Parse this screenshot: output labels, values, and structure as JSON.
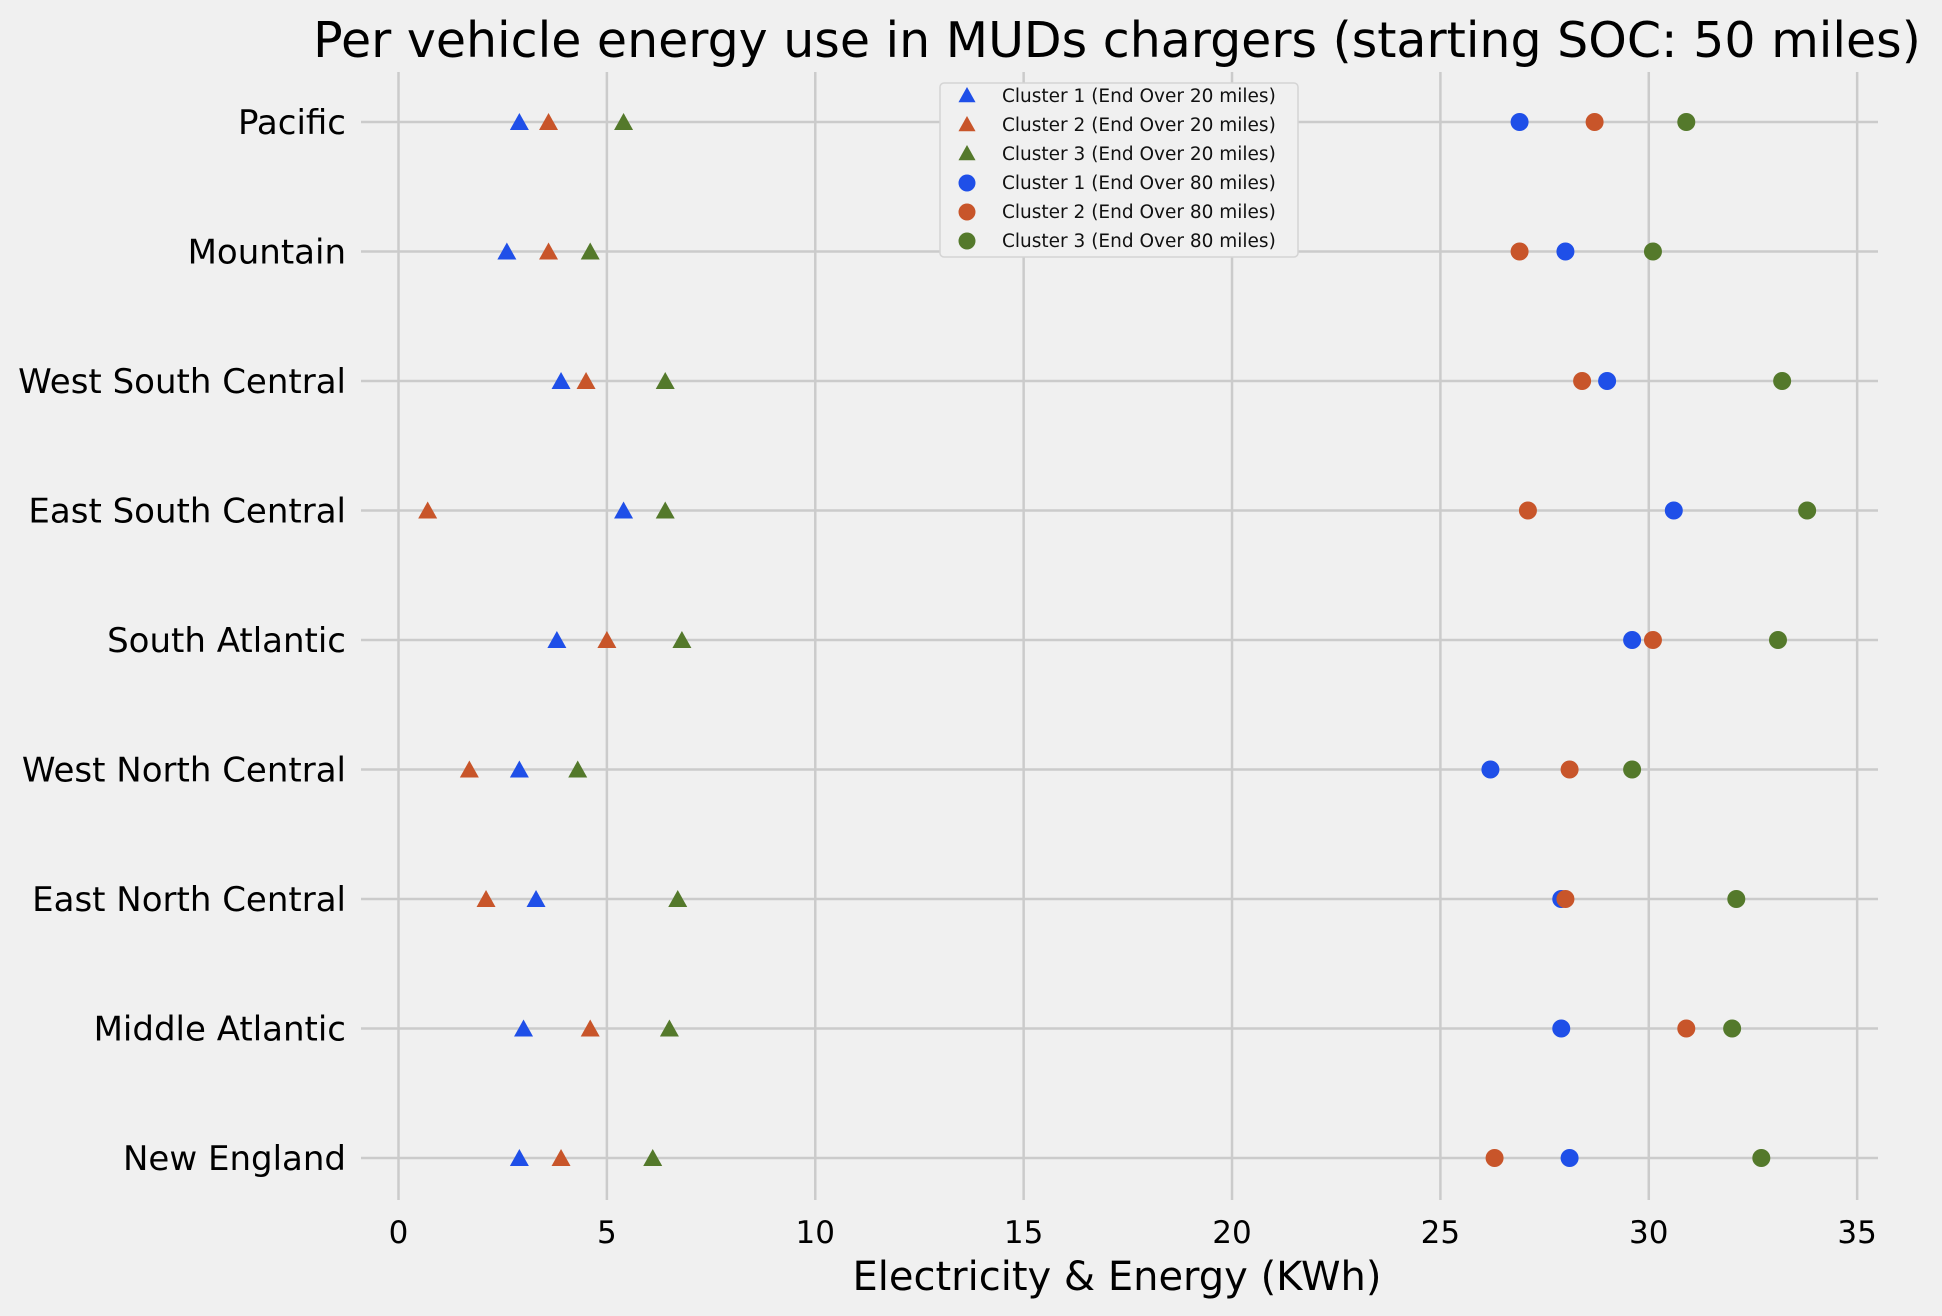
{
  "chart_data": {
    "type": "scatter",
    "title": "Per vehicle energy use in MUDs chargers (starting SOC: 50 miles)",
    "xlabel": "Electricity & Energy (KWh)",
    "ylabel": "",
    "xlim": [
      -0.9,
      35.5
    ],
    "xticks": [
      0,
      5,
      10,
      15,
      20,
      25,
      30,
      35
    ],
    "categories": [
      "Pacific",
      "Mountain",
      "West South Central",
      "East South Central",
      "South Atlantic",
      "West North Central",
      "East North Central",
      "Middle Atlantic",
      "New England"
    ],
    "grid": true,
    "legend_position": "top-center",
    "series": [
      {
        "name": "Cluster 1 (End Over 20 miles)",
        "marker": "triangle",
        "color": "#1f4fe8",
        "values": [
          2.9,
          2.6,
          3.9,
          5.4,
          3.8,
          2.9,
          3.3,
          3.0,
          2.9
        ]
      },
      {
        "name": "Cluster 2 (End Over 20 miles)",
        "marker": "triangle",
        "color": "#c8552a",
        "values": [
          3.6,
          3.6,
          4.5,
          0.7,
          5.0,
          1.7,
          2.1,
          4.6,
          3.9
        ]
      },
      {
        "name": "Cluster 3 (End Over 20 miles)",
        "marker": "triangle",
        "color": "#54792b",
        "values": [
          5.4,
          4.6,
          6.4,
          6.4,
          6.8,
          4.3,
          6.7,
          6.5,
          6.1
        ]
      },
      {
        "name": "Cluster 1 (End Over 80 miles)",
        "marker": "circle",
        "color": "#1f4fe8",
        "values": [
          26.9,
          28.0,
          29.0,
          30.6,
          29.6,
          26.2,
          27.9,
          27.9,
          28.1
        ]
      },
      {
        "name": "Cluster 2 (End Over 80 miles)",
        "marker": "circle",
        "color": "#c8552a",
        "values": [
          28.7,
          26.9,
          28.4,
          27.1,
          30.1,
          28.1,
          28.0,
          30.9,
          26.3
        ]
      },
      {
        "name": "Cluster 3 (End Over 80 miles)",
        "marker": "circle",
        "color": "#54792b",
        "values": [
          30.9,
          30.1,
          33.2,
          33.8,
          33.1,
          29.6,
          32.1,
          32.0,
          32.7
        ]
      }
    ]
  }
}
